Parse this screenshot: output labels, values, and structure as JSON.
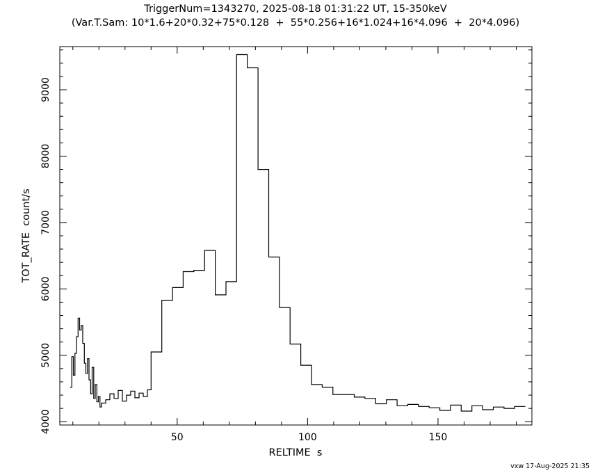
{
  "title_line1": "TriggerNum=1343270, 2025-08-18 01:31:22 UT, 15-350keV",
  "title_line2": "(Var.T.Sam: 10*1.6+20*0.32+75*0.128  +  55*0.256+16*1.024+16*4.096  +  20*4.096)",
  "footer": "vxw 17-Aug-2025 21:35",
  "chart_data": {
    "type": "line",
    "style": "step",
    "title": "TriggerNum=1343270, 2025-08-18 01:31:22 UT, 15-350keV",
    "subtitle": "(Var.T.Sam: 10*1.6+20*0.32+75*0.128  +  55*0.256+16*1.024+16*4.096  +  20*4.096)",
    "xlabel": "RELTIME  s",
    "ylabel": "TOT_RATE  count/s",
    "xlim": [
      5,
      186
    ],
    "ylim": [
      3950,
      9650
    ],
    "xticks": [
      50,
      100,
      150
    ],
    "yticks": [
      4000,
      5000,
      6000,
      7000,
      8000,
      9000
    ],
    "grid": false,
    "legend": "none",
    "line_color": "#000000",
    "series": [
      {
        "edges": [
          9.0,
          9.6,
          10.2,
          10.8,
          11.4,
          12.0,
          12.6,
          13.2,
          13.8,
          14.4,
          15.0,
          15.6,
          16.2,
          16.8,
          17.4,
          18.0,
          18.6,
          19.2,
          19.8,
          20.4,
          21.0,
          22.6,
          24.2,
          25.8,
          27.4,
          29.0,
          30.6,
          32.2,
          33.8,
          35.4,
          37.0,
          38.6,
          40.0,
          44.1,
          48.2,
          52.3,
          56.4,
          60.5,
          64.6,
          68.7,
          72.8,
          76.9,
          81.0,
          85.1,
          89.2,
          93.3,
          97.4,
          101.5,
          105.6,
          109.7,
          113.8,
          117.9,
          122.0,
          126.1,
          130.2,
          134.3,
          138.4,
          142.5,
          146.6,
          150.7,
          154.8,
          158.9,
          163.0,
          167.1,
          171.2,
          175.3,
          179.4,
          183.5
        ],
        "values": [
          4520,
          4980,
          4700,
          5030,
          5280,
          5560,
          5380,
          5450,
          5180,
          4880,
          4730,
          4950,
          4630,
          4420,
          4820,
          4350,
          4560,
          4300,
          4380,
          4220,
          4280,
          4330,
          4420,
          4350,
          4470,
          4310,
          4400,
          4460,
          4360,
          4430,
          4380,
          4480,
          5050,
          5830,
          6020,
          6260,
          6280,
          6580,
          5910,
          6110,
          9530,
          9330,
          7800,
          6480,
          5720,
          5170,
          4850,
          4560,
          4520,
          4410,
          4410,
          4370,
          4350,
          4270,
          4330,
          4240,
          4260,
          4230,
          4210,
          4170,
          4250,
          4160,
          4240,
          4180,
          4220,
          4200,
          4230
        ]
      }
    ]
  }
}
